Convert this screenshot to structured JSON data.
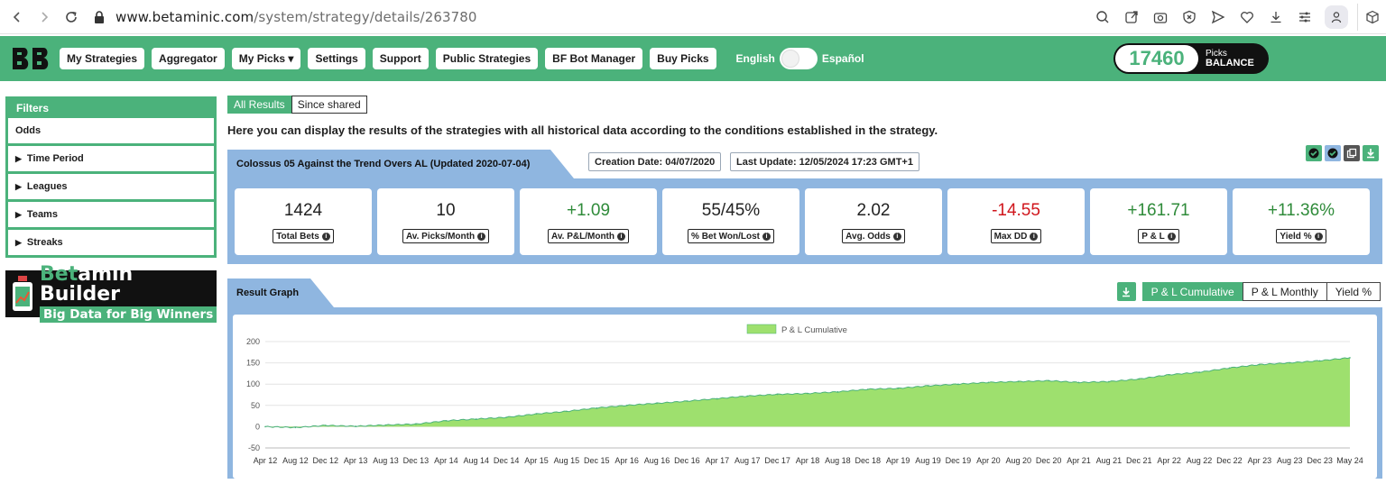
{
  "browser": {
    "url_host": "www.betaminic.com",
    "url_path": "/system/strategy/details/263780"
  },
  "header": {
    "nav": [
      {
        "label": "My Strategies"
      },
      {
        "label": "Aggregator"
      },
      {
        "label": "My Picks ▾"
      },
      {
        "label": "Settings"
      },
      {
        "label": "Support"
      },
      {
        "label": "Public Strategies"
      },
      {
        "label": "BF Bot Manager"
      },
      {
        "label": "Buy Picks"
      }
    ],
    "lang_left": "English",
    "lang_right": "Español",
    "balance_value": "17460",
    "balance_small": "Picks",
    "balance_big": "BALANCE",
    "accent": "#4bb27b"
  },
  "sidebar": {
    "filters_title": "Filters",
    "items": [
      "Odds",
      "Time Period",
      "Leagues",
      "Teams",
      "Streaks"
    ],
    "banner_title_green": "Bet",
    "banner_title_white": "amin Builder",
    "banner_subtitle": "Big Data for Big Winners"
  },
  "main": {
    "tabs": [
      {
        "label": "All Results"
      },
      {
        "label": "Since shared"
      }
    ],
    "intro": "Here you can display the results of the strategies with all historical data according to the conditions established in the strategy.",
    "strategy_title": "Colossus 05 Against the Trend Overs AL (Updated 2020-07-04)",
    "creation_date": "Creation Date: 04/07/2020",
    "last_update": "Last Update: 12/05/2024 17:23 GMT+1",
    "stats": [
      {
        "value": "1424",
        "label": "Total Bets",
        "tone": "plain"
      },
      {
        "value": "10",
        "label": "Av. Picks/Month",
        "tone": "plain"
      },
      {
        "value": "+1.09",
        "label": "Av. P&L/Month",
        "tone": "pos"
      },
      {
        "value": "55/45%",
        "label": "% Bet Won/Lost",
        "tone": "plain"
      },
      {
        "value": "2.02",
        "label": "Avg. Odds",
        "tone": "plain"
      },
      {
        "value": "-14.55",
        "label": "Max DD",
        "tone": "neg"
      },
      {
        "value": "+161.71",
        "label": "P & L",
        "tone": "pos"
      },
      {
        "value": "+11.36%",
        "label": "Yield %",
        "tone": "pos"
      }
    ],
    "graph_title": "Result Graph",
    "graph_buttons": [
      {
        "label": "P & L Cumulative"
      },
      {
        "label": "P & L Monthly"
      },
      {
        "label": "Yield %"
      }
    ]
  },
  "chart_data": {
    "type": "area",
    "title": "",
    "legend": [
      "P & L Cumulative"
    ],
    "legend_position": "top",
    "xlabel": "",
    "ylabel": "",
    "ylim": [
      -50,
      200
    ],
    "yticks": [
      -50,
      0,
      50,
      100,
      150,
      200
    ],
    "grid": true,
    "fill_color": "#9ee06e",
    "line_color": "#4bb27b",
    "categories": [
      "Apr 12",
      "Aug 12",
      "Dec 12",
      "Apr 13",
      "Aug 13",
      "Dec 13",
      "Apr 14",
      "Aug 14",
      "Dec 14",
      "Apr 15",
      "Aug 15",
      "Dec 15",
      "Apr 16",
      "Aug 16",
      "Dec 16",
      "Apr 17",
      "Aug 17",
      "Dec 17",
      "Apr 18",
      "Aug 18",
      "Dec 18",
      "Apr 19",
      "Aug 19",
      "Dec 19",
      "Apr 20",
      "Aug 20",
      "Dec 20",
      "Apr 21",
      "Aug 21",
      "Dec 21",
      "Apr 22",
      "Aug 22",
      "Dec 22",
      "Apr 23",
      "Aug 23",
      "Dec 23",
      "May 24"
    ],
    "series": [
      {
        "name": "P & L Cumulative",
        "values": [
          0,
          -2,
          3,
          1,
          4,
          6,
          14,
          18,
          22,
          30,
          36,
          44,
          50,
          55,
          60,
          66,
          72,
          76,
          78,
          82,
          88,
          90,
          96,
          100,
          104,
          106,
          108,
          104,
          106,
          112,
          122,
          128,
          138,
          146,
          150,
          155,
          162
        ]
      }
    ]
  }
}
